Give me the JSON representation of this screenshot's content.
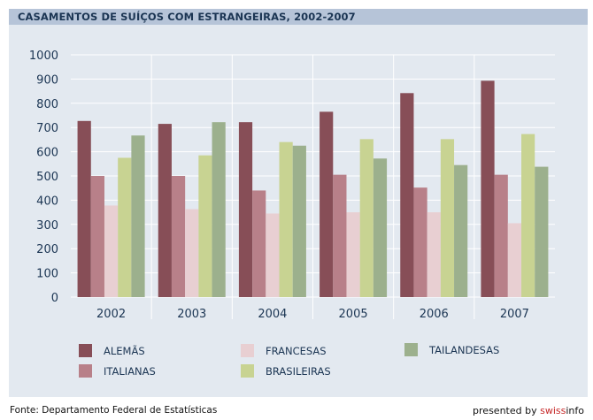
{
  "header": {
    "title": "CASAMENTOS DE SUÍÇOS COM ESTRANGEIRAS, 2002-2007"
  },
  "footer": {
    "source": "Fonte: Departamento Federal de Estatísticas",
    "presented_by": "presented by",
    "brand_part1": "swiss",
    "brand_part2": "info"
  },
  "colors": {
    "grid": "#ffffff",
    "axis_text": "#1b3553"
  },
  "chart_data": {
    "type": "bar",
    "title": "CASAMENTOS DE SUÍÇOS COM ESTRANGEIRAS, 2002-2007",
    "categories": [
      "2002",
      "2003",
      "2004",
      "2005",
      "2006",
      "2007"
    ],
    "ylim": [
      0,
      1000
    ],
    "yticks": [
      0,
      100,
      200,
      300,
      400,
      500,
      600,
      700,
      800,
      900,
      1000
    ],
    "xlabel": "",
    "ylabel": "",
    "grid": true,
    "legend_position": "bottom",
    "series": [
      {
        "name": "ALEMÃS",
        "color": "#874e57",
        "values": [
          727,
          715,
          722,
          765,
          842,
          893
        ]
      },
      {
        "name": "ITALIANAS",
        "color": "#b88089",
        "values": [
          500,
          500,
          440,
          505,
          452,
          505
        ]
      },
      {
        "name": "FRANCESAS",
        "color": "#e8cfd2",
        "values": [
          378,
          363,
          345,
          350,
          350,
          305
        ]
      },
      {
        "name": "BRASILEIRAS",
        "color": "#c8d392",
        "values": [
          575,
          585,
          640,
          652,
          652,
          673
        ]
      },
      {
        "name": "TAILANDESAS",
        "color": "#9cb08d",
        "values": [
          667,
          722,
          625,
          572,
          545,
          538
        ]
      }
    ]
  }
}
